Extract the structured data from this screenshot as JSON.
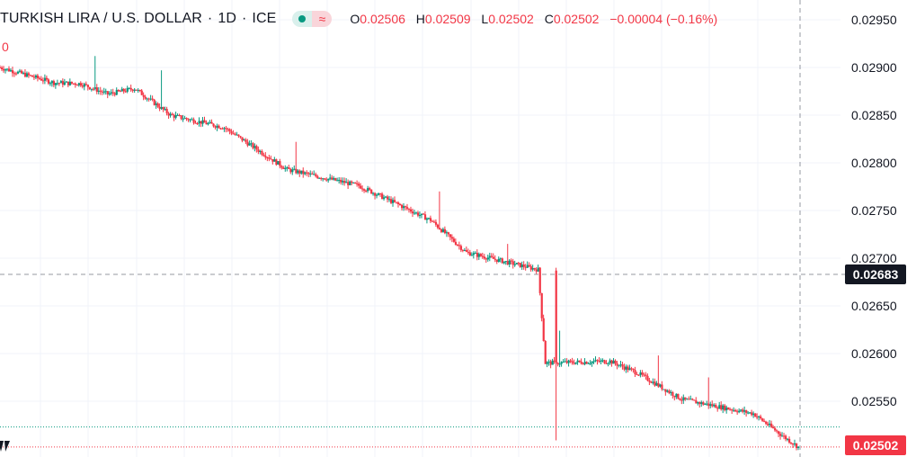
{
  "header": {
    "symbol": "TURKISH LIRA / U.S. DOLLAR",
    "sep": "·",
    "interval": "1D",
    "exchange": "ICE",
    "ohlc": {
      "o_label": "O",
      "o_value": "0.02506",
      "h_label": "H",
      "h_value": "0.02509",
      "l_label": "L",
      "l_value": "0.02502",
      "c_label": "C",
      "c_value": "0.02502",
      "change": "−0.00004 (−0.16%)"
    },
    "indicator_value": "0"
  },
  "icons": {
    "status": "green-dot-icon",
    "compare": "wave-icon",
    "logo": "tradingview-logo-icon"
  },
  "colors": {
    "up": "#089981",
    "down": "#f23645",
    "last_price_bg": "#f23645",
    "crosshair_bg": "#131722",
    "grid": "#f0f3fa"
  },
  "axis": {
    "tick_labels": [
      "0.02950",
      "0.02900",
      "0.02850",
      "0.02800",
      "0.02750",
      "0.02700",
      "0.02650",
      "0.02600",
      "0.02550"
    ],
    "last_price_label": "0.02502",
    "crosshair_price_label": "0.02683"
  },
  "chart_data": {
    "type": "candlestick",
    "interval": "1D",
    "ylim": [
      0.02497,
      0.02963
    ],
    "yticks": [
      0.0295,
      0.029,
      0.0285,
      0.028,
      0.0275,
      0.027,
      0.0265,
      0.026,
      0.0255
    ],
    "grid": true,
    "last_price": 0.02502,
    "crosshair_price": 0.02683,
    "reference_price": 0.02523,
    "anchors": [
      [
        0,
        0.029
      ],
      [
        30,
        0.02884
      ],
      [
        45,
        0.02883
      ],
      [
        60,
        0.02872
      ],
      [
        75,
        0.02878
      ],
      [
        95,
        0.0285
      ],
      [
        125,
        0.02837
      ],
      [
        160,
        0.02793
      ],
      [
        200,
        0.02776
      ],
      [
        240,
        0.0274
      ],
      [
        260,
        0.02706
      ],
      [
        300,
        0.02688
      ],
      [
        304,
        0.0259
      ],
      [
        340,
        0.02592
      ],
      [
        355,
        0.0258
      ],
      [
        380,
        0.02552
      ],
      [
        420,
        0.02537
      ],
      [
        436,
        0.02514
      ],
      [
        445,
        0.02502
      ]
    ],
    "spikes": [
      {
        "x": 53,
        "high": 0.02912
      },
      {
        "x": 90,
        "high": 0.02897
      },
      {
        "x": 165,
        "high": 0.02822
      },
      {
        "x": 245,
        "high": 0.0277
      },
      {
        "x": 283,
        "high": 0.02715
      },
      {
        "x": 312,
        "high": 0.02624
      },
      {
        "x": 395,
        "high": 0.02575
      },
      {
        "x": 367,
        "high": 0.02598
      }
    ],
    "big_drop": {
      "x": 310,
      "open": 0.02687,
      "close": 0.0259,
      "high": 0.0269,
      "low": 0.02509
    }
  }
}
